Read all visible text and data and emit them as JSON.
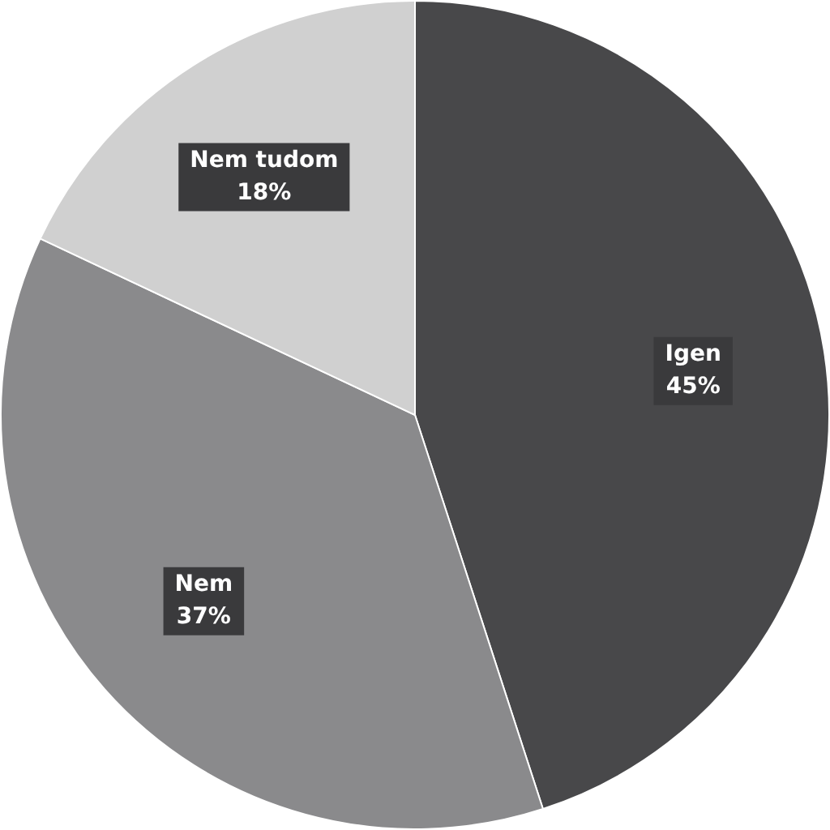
{
  "chart_data": {
    "type": "pie",
    "categories": [
      "Igen",
      "Nem",
      "Nem tudom"
    ],
    "values": [
      45,
      37,
      18
    ],
    "colors": [
      "#48484a",
      "#8a8a8c",
      "#d0d0d0"
    ],
    "value_labels": [
      "45%",
      "37%",
      "18%"
    ],
    "legend": false
  }
}
